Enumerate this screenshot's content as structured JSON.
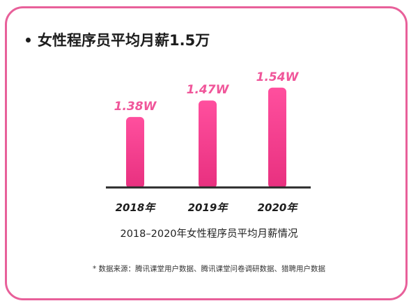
{
  "headline": "女性程序员平均月薪1.5万",
  "chart_data": {
    "type": "bar",
    "categories": [
      "2018年",
      "2019年",
      "2020年"
    ],
    "values": [
      1.38,
      1.47,
      1.54
    ],
    "value_labels": [
      "1.38W",
      "1.47W",
      "1.54W"
    ],
    "unit": "W",
    "title": "2018–2020年女性程序员平均月薪情况",
    "xlabel": "",
    "ylabel": "",
    "ylim": [
      1.0,
      1.6
    ],
    "grid": false,
    "bar_color_top": "#ff4f9e",
    "bar_color_bottom": "#e8307f"
  },
  "source_note": "* 数据来源：腾讯课堂用户数据、腾讯课堂问卷调研数据、猎聘用户数据",
  "colors": {
    "border": "#e8609a",
    "accent": "#f0569a",
    "text": "#1d1d1d"
  }
}
